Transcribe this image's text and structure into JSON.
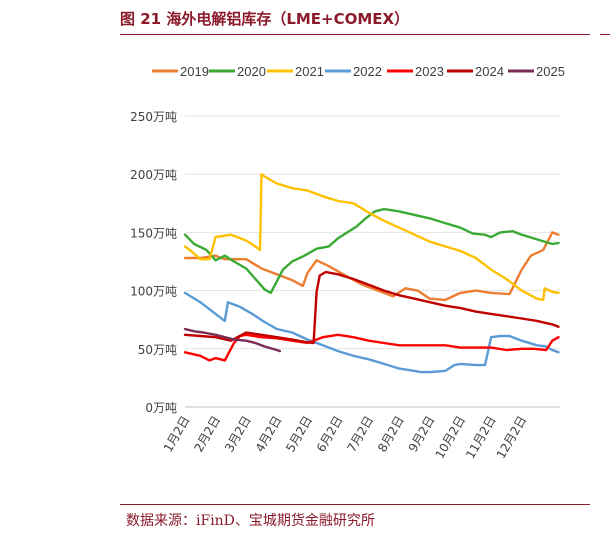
{
  "header": {
    "title": "图 21 海外电解铝库存（LME+COMEX）"
  },
  "footer": {
    "source": "数据来源：iFinD、宝城期货金融研究所"
  },
  "chart_data": {
    "type": "line",
    "title": "图 21 海外电解铝库存（LME+COMEX）",
    "xlabel": "",
    "ylabel": "",
    "ylim": [
      0,
      250
    ],
    "y_ticks": [
      "0万吨",
      "50万吨",
      "100万吨",
      "150万吨",
      "200万吨",
      "250万吨"
    ],
    "x_ticks": [
      "1月2日",
      "2月2日",
      "3月2日",
      "4月2日",
      "5月2日",
      "6月2日",
      "7月2日",
      "8月2日",
      "9月2日",
      "10月2日",
      "11月2日",
      "12月2日"
    ],
    "x_unit": "month (1 = Jan 2nd, 12 = Dec 2nd)",
    "grid": "horizontal",
    "legend_position": "top",
    "series": [
      {
        "name": "2019",
        "color": "#ed7d31",
        "x": [
          1.0,
          1.5,
          2.0,
          2.3,
          3.0,
          3.5,
          4.0,
          4.5,
          4.85,
          5.0,
          5.3,
          5.7,
          6.3,
          6.8,
          7.3,
          7.8,
          8.2,
          8.6,
          9.0,
          9.5,
          10.0,
          10.5,
          11.0,
          11.6,
          12.0,
          12.3,
          12.7,
          13.0,
          13.2
        ],
        "values": [
          128,
          128,
          130,
          127,
          127,
          119,
          114,
          109,
          104,
          115,
          126,
          121,
          112,
          105,
          100,
          95,
          102,
          100,
          93,
          92,
          98,
          100,
          98,
          97,
          118,
          130,
          135,
          150,
          148
        ]
      },
      {
        "name": "2020",
        "color": "#3aaa35",
        "x": [
          1.0,
          1.3,
          1.7,
          2.0,
          2.3,
          2.6,
          3.0,
          3.3,
          3.6,
          3.8,
          4.2,
          4.5,
          4.9,
          5.3,
          5.7,
          6.0,
          6.3,
          6.6,
          6.9,
          7.2,
          7.5,
          8.0,
          8.5,
          9.0,
          9.5,
          10.0,
          10.4,
          10.8,
          11.0,
          11.3,
          11.7,
          12.0,
          12.5,
          13.0,
          13.2
        ],
        "values": [
          148,
          140,
          135,
          126,
          130,
          125,
          119,
          110,
          101,
          98,
          118,
          125,
          130,
          136,
          138,
          145,
          150,
          155,
          162,
          168,
          170,
          168,
          165,
          162,
          158,
          154,
          149,
          148,
          146,
          150,
          151,
          148,
          144,
          140,
          141
        ]
      },
      {
        "name": "2021",
        "color": "#ffc000",
        "x": [
          1.0,
          1.2,
          1.5,
          1.8,
          2.0,
          2.5,
          3.0,
          3.4,
          3.45,
          3.5,
          3.6,
          4.0,
          4.5,
          5.0,
          5.5,
          6.0,
          6.5,
          7.0,
          7.5,
          8.0,
          8.5,
          9.0,
          9.5,
          10.0,
          10.5,
          11.0,
          11.5,
          12.0,
          12.5,
          12.7,
          12.75,
          13.0,
          13.2
        ],
        "values": [
          138,
          134,
          127,
          127,
          146,
          148,
          143,
          136,
          135,
          200,
          198,
          192,
          188,
          186,
          181,
          177,
          175,
          167,
          160,
          154,
          148,
          142,
          138,
          134,
          128,
          118,
          110,
          100,
          93,
          92,
          102,
          99,
          98
        ]
      },
      {
        "name": "2022",
        "color": "#5b9bd5",
        "x": [
          1.0,
          1.5,
          2.0,
          2.3,
          2.4,
          2.8,
          3.2,
          3.6,
          4.0,
          4.5,
          5.0,
          5.5,
          6.0,
          6.5,
          7.0,
          7.5,
          8.0,
          8.5,
          8.7,
          9.0,
          9.5,
          9.8,
          10.0,
          10.5,
          10.8,
          11.0,
          11.3,
          11.6,
          12.0,
          12.5,
          12.8,
          13.0,
          13.2
        ],
        "values": [
          98,
          90,
          80,
          74,
          90,
          86,
          80,
          73,
          67,
          64,
          58,
          53,
          48,
          44,
          41,
          37,
          33,
          31,
          30,
          30,
          31,
          36,
          37,
          36,
          36,
          60,
          61,
          61,
          57,
          53,
          52,
          49,
          47
        ]
      },
      {
        "name": "2023",
        "color": "#ff0000",
        "x": [
          1.0,
          1.5,
          1.8,
          2.0,
          2.3,
          2.6,
          2.8,
          3.0,
          3.5,
          4.0,
          4.5,
          5.0,
          5.5,
          6.0,
          6.5,
          7.0,
          7.5,
          8.0,
          8.5,
          9.0,
          9.5,
          10.0,
          10.5,
          11.0,
          11.5,
          12.0,
          12.4,
          12.8,
          13.0,
          13.2
        ],
        "values": [
          47,
          44,
          40,
          42,
          40,
          55,
          61,
          62,
          60,
          59,
          57,
          55,
          60,
          62,
          60,
          57,
          55,
          53,
          53,
          53,
          53,
          51,
          51,
          51,
          49,
          50,
          50,
          49,
          57,
          60
        ]
      },
      {
        "name": "2024",
        "color": "#c00000",
        "x": [
          1.0,
          1.5,
          2.0,
          2.5,
          3.0,
          3.5,
          4.0,
          4.5,
          4.9,
          5.2,
          5.3,
          5.4,
          5.6,
          6.0,
          6.5,
          7.0,
          7.5,
          8.0,
          8.5,
          9.0,
          9.5,
          10.0,
          10.5,
          11.0,
          11.5,
          12.0,
          12.5,
          13.0,
          13.2
        ],
        "values": [
          62,
          61,
          60,
          57,
          64,
          62,
          60,
          58,
          56,
          55,
          99,
          113,
          116,
          114,
          110,
          105,
          100,
          96,
          93,
          90,
          87,
          85,
          82,
          80,
          78,
          76,
          74,
          71,
          69
        ]
      },
      {
        "name": "2025",
        "color": "#7b2c55",
        "x": [
          1.0,
          1.3,
          1.6,
          2.0,
          2.3,
          2.6,
          3.0,
          3.3,
          3.6,
          4.0,
          4.1
        ],
        "values": [
          67,
          65,
          64,
          62,
          60,
          58,
          57,
          55,
          52,
          49,
          48
        ]
      }
    ]
  }
}
